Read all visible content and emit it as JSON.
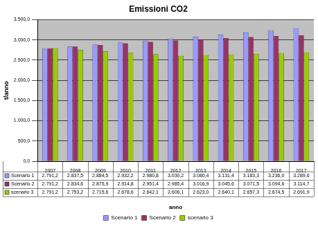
{
  "chart_data": {
    "type": "bar",
    "title": "Emissioni CO2",
    "x_label": "anno",
    "y_label": "t/anno",
    "categories": [
      "2007",
      "2008",
      "2009",
      "2010",
      "2011",
      "2012",
      "2013",
      "2014",
      "2015",
      "2016",
      "2017"
    ],
    "series": [
      {
        "name": "Scenario 1",
        "color": "#9999ff",
        "values": [
          2791.2,
          2837.5,
          2884.5,
          2932.2,
          2980.8,
          3030.2,
          3080.4,
          3131.4,
          3183.3,
          3236.0,
          3289.6
        ],
        "value_labels": [
          "2.791,2",
          "2.837,5",
          "2.884,5",
          "2.932,2",
          "2.980,8",
          "3.030,2",
          "3.080,4",
          "3.131,4",
          "3.183,3",
          "3.236,0",
          "3.289,6"
        ]
      },
      {
        "name": "Scenario 2",
        "color": "#993366",
        "values": [
          2791.2,
          2834.6,
          2875.9,
          2914.8,
          2951.4,
          2985.4,
          3016.9,
          3045.6,
          3071.5,
          3094.6,
          3114.7
        ],
        "value_labels": [
          "2.791,2",
          "2.834,6",
          "2.875,9",
          "2.914,8",
          "2.951,4",
          "2.985,4",
          "3.016,9",
          "3.045,6",
          "3.071,5",
          "3.094,6",
          "3.114,7"
        ]
      },
      {
        "name": "scenario 3",
        "color": "#99cc00",
        "values": [
          2791.2,
          2753.2,
          2715.6,
          2678.6,
          2642.1,
          2606.1,
          2623.0,
          2640.1,
          2657.3,
          2674.5,
          2691.9
        ],
        "value_labels": [
          "2.791,2",
          "2.753,2",
          "2.715,6",
          "2.678,6",
          "2.642,1",
          "2.606,1",
          "2.623,0",
          "2.640,1",
          "2.657,3",
          "2.674,5",
          "2.691,9"
        ]
      }
    ],
    "ylim": [
      0,
      3500
    ],
    "yticks": [
      {
        "value": 0,
        "label": "0,0"
      },
      {
        "value": 500,
        "label": "500,0"
      },
      {
        "value": 1000,
        "label": "1.000,0"
      },
      {
        "value": 1500,
        "label": "1.500,0"
      },
      {
        "value": 2000,
        "label": "2.000,0"
      },
      {
        "value": 2500,
        "label": "2.500,0"
      },
      {
        "value": 3000,
        "label": "3.000,0"
      },
      {
        "value": 3500,
        "label": "3.500,0"
      }
    ],
    "grid": true,
    "legend": "bottom"
  }
}
